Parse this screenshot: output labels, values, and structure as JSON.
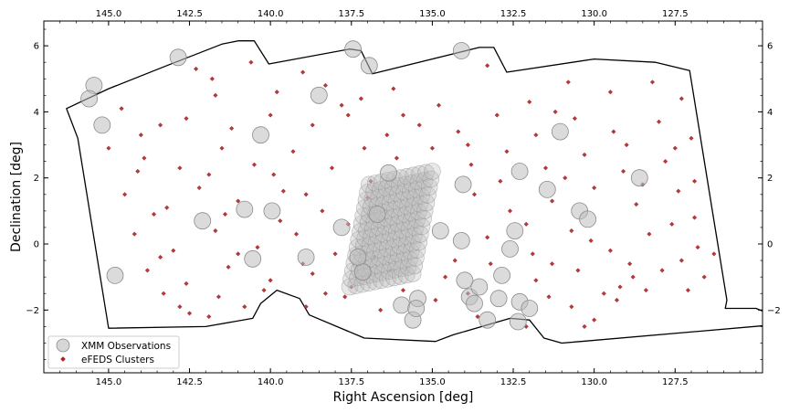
{
  "chart_data": {
    "type": "scatter",
    "xlabel": "Right Ascension [deg]",
    "ylabel": "Declination [deg]",
    "xlim": [
      147.0,
      124.8
    ],
    "ylim": [
      -3.9,
      6.75
    ],
    "x_inverted": true,
    "xticks": [
      145.0,
      142.5,
      140.0,
      137.5,
      135.0,
      132.5,
      130.0,
      127.5
    ],
    "xtick_labels": [
      "145.0",
      "142.5",
      "140.0",
      "137.5",
      "135.0",
      "132.5",
      "130.0",
      "127.5"
    ],
    "yticks": [
      -2,
      0,
      2,
      4,
      6
    ],
    "ytick_labels": [
      "−2",
      "0",
      "2",
      "4",
      "6"
    ],
    "top_axis_mirrors_bottom": true,
    "right_axis_mirrors_left": true,
    "grid": false,
    "legend_position": "lower-left",
    "colors": {
      "xmm_face": "#bdbdbd",
      "xmm_edge": "#8c8c8c",
      "clusters": "#b22222",
      "footprint": "#000000"
    },
    "footprint_outline": [
      [
        145.0,
        4.7
      ],
      [
        143.2,
        5.4
      ],
      [
        141.5,
        6.05
      ],
      [
        141.0,
        6.15
      ],
      [
        140.5,
        6.15
      ],
      [
        140.05,
        5.45
      ],
      [
        137.55,
        5.9
      ],
      [
        137.2,
        5.85
      ],
      [
        136.85,
        5.15
      ],
      [
        133.55,
        5.95
      ],
      [
        133.1,
        5.95
      ],
      [
        132.7,
        5.2
      ],
      [
        130.0,
        5.6
      ],
      [
        128.1,
        5.5
      ],
      [
        127.05,
        5.25
      ],
      [
        126.35,
        1.0
      ],
      [
        125.9,
        -1.7
      ],
      [
        125.95,
        -1.95
      ],
      [
        125.0,
        -1.95
      ],
      [
        123.9,
        -2.4
      ],
      [
        131.0,
        -3.0
      ],
      [
        131.55,
        -2.85
      ],
      [
        132.0,
        -2.3
      ],
      [
        132.6,
        -2.25
      ],
      [
        134.35,
        -2.75
      ],
      [
        134.9,
        -2.95
      ],
      [
        137.1,
        -2.85
      ],
      [
        138.8,
        -2.15
      ],
      [
        139.1,
        -1.65
      ],
      [
        139.8,
        -1.4
      ],
      [
        140.3,
        -1.8
      ],
      [
        140.55,
        -2.25
      ],
      [
        142.0,
        -2.5
      ],
      [
        145.0,
        -2.55
      ],
      [
        145.95,
        3.2
      ],
      [
        146.3,
        4.1
      ]
    ],
    "series": [
      {
        "name": "XMM Observations",
        "marker": "circle",
        "points": [
          [
            142.85,
            5.65
          ],
          [
            145.45,
            4.8
          ],
          [
            145.6,
            4.4
          ],
          [
            145.2,
            3.6
          ],
          [
            144.8,
            -0.95
          ],
          [
            142.1,
            0.7
          ],
          [
            140.8,
            1.05
          ],
          [
            140.3,
            3.3
          ],
          [
            139.95,
            1.0
          ],
          [
            140.55,
            -0.45
          ],
          [
            138.9,
            -0.4
          ],
          [
            138.5,
            4.5
          ],
          [
            137.45,
            5.9
          ],
          [
            136.95,
            5.4
          ],
          [
            137.8,
            0.5
          ],
          [
            137.15,
            -0.85
          ],
          [
            137.3,
            -0.4
          ],
          [
            136.7,
            0.9
          ],
          [
            136.35,
            2.15
          ],
          [
            135.95,
            -1.85
          ],
          [
            135.6,
            -2.3
          ],
          [
            135.45,
            -1.65
          ],
          [
            135.5,
            -1.95
          ],
          [
            134.75,
            0.4
          ],
          [
            134.1,
            5.85
          ],
          [
            134.05,
            1.8
          ],
          [
            134.1,
            0.1
          ],
          [
            134.0,
            -1.1
          ],
          [
            133.85,
            -1.6
          ],
          [
            133.55,
            -1.3
          ],
          [
            133.7,
            -1.8
          ],
          [
            133.3,
            -2.3
          ],
          [
            132.95,
            -1.65
          ],
          [
            132.85,
            -0.95
          ],
          [
            132.6,
            -0.15
          ],
          [
            132.45,
            0.4
          ],
          [
            132.3,
            2.2
          ],
          [
            132.3,
            -1.75
          ],
          [
            132.35,
            -2.35
          ],
          [
            132.0,
            -1.95
          ],
          [
            131.45,
            1.65
          ],
          [
            131.05,
            3.4
          ],
          [
            130.45,
            1.0
          ],
          [
            130.2,
            0.75
          ],
          [
            128.6,
            2.0
          ]
        ]
      },
      {
        "name": "eFEDS Clusters",
        "marker": "diamond",
        "points": [
          [
            142.3,
            5.3
          ],
          [
            141.8,
            5.0
          ],
          [
            140.6,
            5.5
          ],
          [
            139.0,
            5.2
          ],
          [
            138.3,
            4.8
          ],
          [
            137.2,
            4.4
          ],
          [
            136.2,
            4.7
          ],
          [
            134.8,
            4.2
          ],
          [
            133.3,
            5.4
          ],
          [
            132.0,
            4.3
          ],
          [
            130.8,
            4.9
          ],
          [
            129.5,
            4.6
          ],
          [
            128.2,
            4.9
          ],
          [
            127.3,
            4.4
          ],
          [
            144.6,
            4.1
          ],
          [
            143.4,
            3.6
          ],
          [
            142.6,
            3.8
          ],
          [
            141.2,
            3.5
          ],
          [
            140.0,
            3.9
          ],
          [
            138.7,
            3.6
          ],
          [
            137.6,
            3.9
          ],
          [
            136.4,
            3.3
          ],
          [
            135.4,
            3.6
          ],
          [
            134.2,
            3.4
          ],
          [
            133.0,
            3.9
          ],
          [
            131.8,
            3.3
          ],
          [
            130.6,
            3.8
          ],
          [
            129.4,
            3.4
          ],
          [
            128.0,
            3.7
          ],
          [
            127.0,
            3.2
          ],
          [
            145.0,
            2.9
          ],
          [
            143.9,
            2.6
          ],
          [
            142.8,
            2.3
          ],
          [
            141.5,
            2.9
          ],
          [
            140.5,
            2.4
          ],
          [
            139.3,
            2.8
          ],
          [
            138.1,
            2.3
          ],
          [
            137.1,
            2.9
          ],
          [
            136.1,
            2.6
          ],
          [
            135.0,
            2.9
          ],
          [
            133.8,
            2.4
          ],
          [
            132.7,
            2.8
          ],
          [
            131.5,
            2.3
          ],
          [
            130.3,
            2.7
          ],
          [
            129.1,
            2.2
          ],
          [
            127.8,
            2.5
          ],
          [
            126.9,
            1.9
          ],
          [
            144.5,
            1.5
          ],
          [
            143.2,
            1.1
          ],
          [
            142.2,
            1.7
          ],
          [
            141.0,
            1.3
          ],
          [
            139.6,
            1.6
          ],
          [
            138.4,
            1.0
          ],
          [
            137.0,
            1.4
          ],
          [
            133.7,
            1.5
          ],
          [
            132.6,
            1.0
          ],
          [
            131.3,
            1.3
          ],
          [
            130.0,
            1.7
          ],
          [
            128.7,
            1.2
          ],
          [
            127.4,
            1.6
          ],
          [
            126.9,
            0.8
          ],
          [
            144.2,
            0.3
          ],
          [
            143.0,
            -0.2
          ],
          [
            141.7,
            0.4
          ],
          [
            140.4,
            -0.1
          ],
          [
            139.2,
            0.3
          ],
          [
            138.0,
            -0.3
          ],
          [
            133.3,
            0.2
          ],
          [
            131.9,
            -0.3
          ],
          [
            130.7,
            0.4
          ],
          [
            129.5,
            -0.2
          ],
          [
            128.3,
            0.3
          ],
          [
            126.8,
            -0.1
          ],
          [
            126.3,
            -0.3
          ],
          [
            143.8,
            -0.8
          ],
          [
            142.6,
            -1.2
          ],
          [
            141.3,
            -0.7
          ],
          [
            140.0,
            -1.1
          ],
          [
            138.7,
            -0.9
          ],
          [
            137.5,
            -1.3
          ],
          [
            136.3,
            -0.8
          ],
          [
            134.6,
            -1.0
          ],
          [
            133.2,
            -0.6
          ],
          [
            131.8,
            -1.1
          ],
          [
            130.5,
            -0.8
          ],
          [
            129.2,
            -1.3
          ],
          [
            127.9,
            -0.8
          ],
          [
            126.6,
            -1.0
          ],
          [
            142.8,
            -1.9
          ],
          [
            141.6,
            -1.6
          ],
          [
            140.2,
            -1.4
          ],
          [
            138.9,
            -1.9
          ],
          [
            137.7,
            -1.6
          ],
          [
            136.6,
            -2.0
          ],
          [
            134.9,
            -1.7
          ],
          [
            133.6,
            -2.2
          ],
          [
            132.1,
            -2.5
          ],
          [
            130.7,
            -1.9
          ],
          [
            130.0,
            -2.3
          ],
          [
            129.3,
            -1.7
          ],
          [
            128.4,
            -1.4
          ],
          [
            127.1,
            -1.4
          ],
          [
            142.5,
            -2.1
          ],
          [
            141.9,
            -2.2
          ],
          [
            130.3,
            -2.5
          ],
          [
            144.0,
            3.3
          ],
          [
            141.7,
            4.5
          ],
          [
            139.8,
            4.6
          ],
          [
            137.8,
            4.2
          ],
          [
            135.9,
            3.9
          ],
          [
            133.9,
            3.0
          ],
          [
            131.2,
            4.0
          ],
          [
            129.0,
            3.0
          ],
          [
            127.5,
            2.9
          ],
          [
            144.1,
            2.2
          ],
          [
            141.9,
            2.1
          ],
          [
            139.9,
            2.1
          ],
          [
            138.9,
            1.5
          ],
          [
            136.9,
            1.9
          ],
          [
            132.9,
            1.9
          ],
          [
            130.9,
            2.0
          ],
          [
            128.5,
            1.8
          ],
          [
            143.6,
            0.9
          ],
          [
            141.4,
            0.9
          ],
          [
            139.7,
            0.7
          ],
          [
            137.6,
            0.6
          ],
          [
            132.1,
            0.6
          ],
          [
            130.1,
            0.1
          ],
          [
            127.6,
            0.6
          ],
          [
            143.4,
            -0.4
          ],
          [
            141.0,
            -0.3
          ],
          [
            139.0,
            -0.6
          ],
          [
            136.8,
            -0.4
          ],
          [
            134.3,
            -0.5
          ],
          [
            131.3,
            -0.6
          ],
          [
            128.9,
            -0.6
          ],
          [
            127.3,
            -0.5
          ],
          [
            143.3,
            -1.5
          ],
          [
            140.8,
            -1.9
          ],
          [
            138.3,
            -1.5
          ],
          [
            135.9,
            -1.4
          ],
          [
            133.9,
            -1.5
          ],
          [
            131.4,
            -1.6
          ],
          [
            129.7,
            -1.5
          ],
          [
            128.8,
            -1.0
          ]
        ]
      }
    ],
    "xmm_dense_block": {
      "description_visible": "dense overlapping XMM circles",
      "x_range": [
        134.8,
        137.4
      ],
      "y_range": [
        -1.1,
        2.0
      ]
    }
  }
}
